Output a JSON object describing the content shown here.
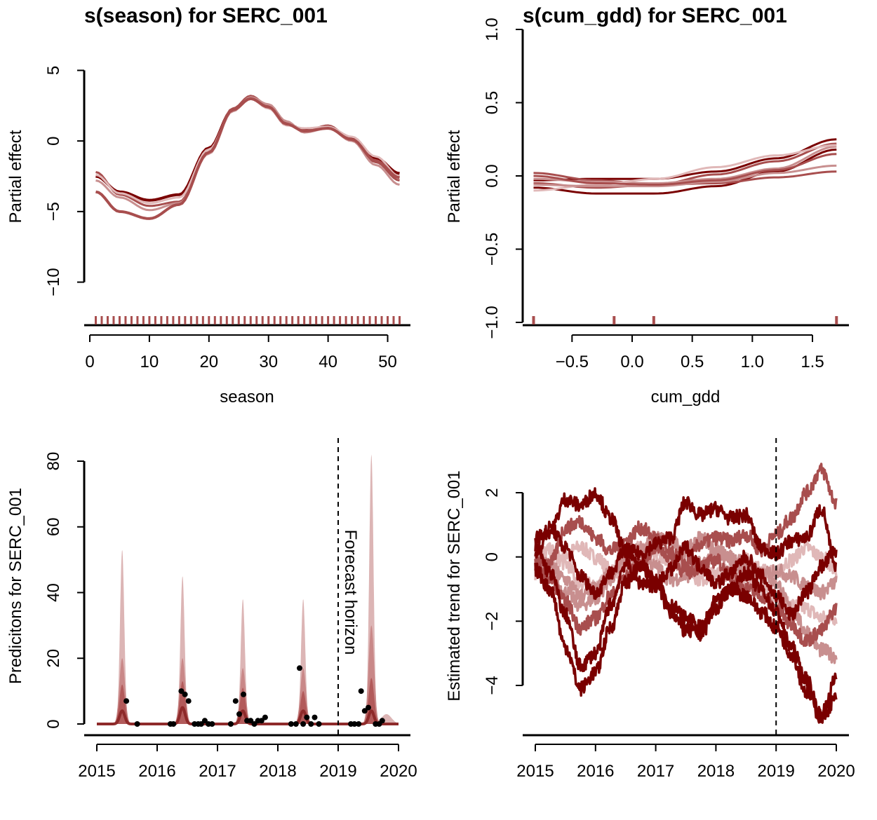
{
  "colors": {
    "dark": "#7a0000",
    "mid": "#a84e4e",
    "light": "#c88f8f",
    "pale": "#e0b8b8",
    "band_outer": "#dcb5b5",
    "band_mid": "#c98888",
    "band_inner": "#b25a5a",
    "points": "#000000"
  },
  "chart_data": [
    {
      "type": "line",
      "title": "s(season) for SERC_001",
      "xlabel": "season",
      "ylabel": "Partial effect",
      "xlim": [
        0,
        53
      ],
      "ylim": [
        -13,
        8
      ],
      "xticks": [
        "0",
        "10",
        "20",
        "30",
        "40",
        "50"
      ],
      "yticks": [
        "5",
        "0",
        "−5",
        "−10"
      ],
      "rug": "weekly, season 1 to 52",
      "series_y_at_x": {
        "x": [
          1,
          5,
          10,
          15,
          20,
          24,
          27,
          30,
          33,
          36,
          40,
          44,
          48,
          52
        ],
        "draws": [
          [
            -2.5,
            -3.6,
            -4.2,
            -3.8,
            -0.5,
            2.2,
            3.0,
            2.4,
            1.2,
            0.8,
            1.0,
            0.2,
            -1.2,
            -2.3
          ],
          [
            -2.2,
            -3.8,
            -4.6,
            -4.3,
            -0.8,
            2.3,
            3.2,
            2.5,
            1.3,
            0.7,
            1.1,
            0.1,
            -1.5,
            -2.8
          ],
          [
            -2.8,
            -4.0,
            -4.9,
            -4.4,
            -0.9,
            2.1,
            3.1,
            2.6,
            1.4,
            0.6,
            0.9,
            0.0,
            -1.7,
            -3.1
          ],
          [
            -2.4,
            -3.7,
            -4.4,
            -4.0,
            -0.6,
            2.2,
            3.0,
            2.3,
            1.1,
            0.9,
            1.0,
            0.3,
            -1.1,
            -2.5
          ],
          [
            -3.6,
            -5.0,
            -5.5,
            -4.5,
            -0.8,
            2.2,
            3.0,
            2.4,
            1.2,
            0.7,
            0.9,
            0.1,
            -1.4,
            -2.6
          ]
        ]
      }
    },
    {
      "type": "line",
      "title": "s(cum_gdd) for SERC_001",
      "xlabel": "cum_gdd",
      "ylabel": "Partial effect",
      "xlim": [
        -0.95,
        1.78
      ],
      "ylim": [
        -1.0,
        1.0
      ],
      "xticks": [
        "−0.5",
        "0.0",
        "0.5",
        "1.0",
        "1.5"
      ],
      "yticks": [
        "−1.0",
        "−0.5",
        "0.0",
        "0.5",
        "1.0"
      ],
      "rug": [
        -0.82,
        -0.15,
        0.18,
        1.7
      ],
      "series_y_at_x": {
        "x": [
          -0.82,
          -0.3,
          0.2,
          0.7,
          1.2,
          1.7
        ],
        "draws": [
          [
            -0.03,
            -0.02,
            -0.02,
            0.03,
            0.12,
            0.25
          ],
          [
            -0.08,
            -0.12,
            -0.12,
            -0.07,
            0.03,
            0.18
          ],
          [
            -0.05,
            -0.08,
            -0.06,
            0.01,
            0.1,
            0.22
          ],
          [
            0.02,
            -0.03,
            -0.06,
            -0.05,
            -0.01,
            0.03
          ],
          [
            -0.02,
            -0.04,
            -0.05,
            -0.02,
            0.05,
            0.2
          ],
          [
            -0.1,
            -0.06,
            -0.02,
            0.06,
            0.14,
            0.21
          ],
          [
            -0.06,
            -0.07,
            -0.07,
            -0.04,
            0.02,
            0.07
          ],
          [
            0.0,
            -0.05,
            -0.06,
            -0.03,
            0.04,
            0.15
          ]
        ]
      }
    },
    {
      "type": "area",
      "title": "",
      "xlabel": "",
      "ylabel": "Predicitons for SERC_001",
      "xlim": [
        2014.8,
        2020.2
      ],
      "ylim": [
        -2,
        88
      ],
      "xticks": [
        "2015",
        "2016",
        "2017",
        "2018",
        "2019",
        "2020"
      ],
      "yticks": [
        "0",
        "20",
        "40",
        "60",
        "80"
      ],
      "vline_x": 2019,
      "vline_label": "Forecast horizon",
      "peaks": [
        {
          "center": 2015.42,
          "upper": 53,
          "q90": 20,
          "q75": 12,
          "median": 4
        },
        {
          "center": 2016.42,
          "upper": 45,
          "q90": 20,
          "q75": 13,
          "median": 5
        },
        {
          "center": 2017.42,
          "upper": 38,
          "q90": 17,
          "q75": 11,
          "median": 4
        },
        {
          "center": 2018.42,
          "upper": 38,
          "q90": 17,
          "q75": 10,
          "median": 4
        },
        {
          "center": 2019.55,
          "upper": 82,
          "q90": 30,
          "q75": 14,
          "median": 4
        }
      ],
      "observations": [
        {
          "x": 2015.49,
          "y": 7
        },
        {
          "x": 2015.67,
          "y": 0
        },
        {
          "x": 2016.22,
          "y": 0
        },
        {
          "x": 2016.27,
          "y": 0
        },
        {
          "x": 2016.4,
          "y": 10
        },
        {
          "x": 2016.46,
          "y": 9
        },
        {
          "x": 2016.52,
          "y": 7
        },
        {
          "x": 2016.62,
          "y": 0
        },
        {
          "x": 2016.68,
          "y": 0
        },
        {
          "x": 2016.73,
          "y": 0
        },
        {
          "x": 2016.79,
          "y": 1
        },
        {
          "x": 2016.85,
          "y": 0
        },
        {
          "x": 2016.91,
          "y": 0
        },
        {
          "x": 2017.22,
          "y": 0
        },
        {
          "x": 2017.3,
          "y": 7
        },
        {
          "x": 2017.36,
          "y": 3
        },
        {
          "x": 2017.43,
          "y": 9
        },
        {
          "x": 2017.49,
          "y": 1
        },
        {
          "x": 2017.55,
          "y": 1
        },
        {
          "x": 2017.61,
          "y": 0
        },
        {
          "x": 2017.67,
          "y": 1
        },
        {
          "x": 2017.73,
          "y": 1
        },
        {
          "x": 2017.79,
          "y": 2
        },
        {
          "x": 2018.22,
          "y": 0
        },
        {
          "x": 2018.3,
          "y": 0
        },
        {
          "x": 2018.36,
          "y": 17
        },
        {
          "x": 2018.42,
          "y": 0
        },
        {
          "x": 2018.48,
          "y": 2
        },
        {
          "x": 2018.55,
          "y": 0
        },
        {
          "x": 2018.61,
          "y": 2
        },
        {
          "x": 2018.68,
          "y": 0
        },
        {
          "x": 2019.21,
          "y": 0
        },
        {
          "x": 2019.27,
          "y": 0
        },
        {
          "x": 2019.34,
          "y": 0
        },
        {
          "x": 2019.38,
          "y": 10
        },
        {
          "x": 2019.44,
          "y": 4
        },
        {
          "x": 2019.5,
          "y": 5
        },
        {
          "x": 2019.62,
          "y": 0
        },
        {
          "x": 2019.68,
          "y": 0
        },
        {
          "x": 2019.73,
          "y": 1
        }
      ]
    },
    {
      "type": "line",
      "title": "",
      "xlabel": "",
      "ylabel": "Estimated trend for SERC_001",
      "xlim": [
        2014.8,
        2020.2
      ],
      "ylim": [
        -5.5,
        3.7
      ],
      "xticks": [
        "2015",
        "2016",
        "2017",
        "2018",
        "2019",
        "2020"
      ],
      "yticks": [
        "2",
        "0",
        "−2",
        "−4"
      ],
      "vline_x": 2019,
      "series": [
        {
          "shade": "dark",
          "x": [
            2015,
            2015.25,
            2015.5,
            2015.75,
            2016,
            2016.25,
            2016.5,
            2016.75,
            2017,
            2017.25,
            2017.5,
            2017.75,
            2018,
            2018.25,
            2018.5,
            2018.75,
            2019,
            2019.25,
            2019.5,
            2019.75,
            2020
          ],
          "y": [
            0.6,
            0.8,
            1.8,
            1.6,
            2.0,
            1.2,
            0.2,
            0.1,
            0.4,
            0.6,
            1.7,
            1.3,
            1.5,
            1.2,
            1.3,
            0.3,
            0.1,
            0.5,
            0.6,
            1.5,
            -0.4
          ]
        },
        {
          "shade": "dark",
          "x": [
            2015,
            2015.25,
            2015.5,
            2015.75,
            2016,
            2016.25,
            2016.5,
            2016.75,
            2017,
            2017.25,
            2017.5,
            2017.75,
            2018,
            2018.25,
            2018.5,
            2018.75,
            2019,
            2019.25,
            2019.5,
            2019.75,
            2020
          ],
          "y": [
            -0.4,
            -1.0,
            -2.8,
            -4.1,
            -3.6,
            -2.2,
            -0.8,
            -0.3,
            -0.6,
            -1.5,
            -1.9,
            -2.2,
            -1.4,
            -1.0,
            -1.2,
            -1.7,
            -2.2,
            -3.0,
            -4.2,
            -5.0,
            -4.4
          ]
        },
        {
          "shade": "dark",
          "x": [
            2015,
            2015.25,
            2015.5,
            2015.75,
            2016,
            2016.25,
            2016.5,
            2016.75,
            2017,
            2017.25,
            2017.5,
            2017.75,
            2018,
            2018.25,
            2018.5,
            2018.75,
            2019,
            2019.25,
            2019.5,
            2019.75,
            2020
          ],
          "y": [
            0.3,
            -0.5,
            -1.8,
            -3.4,
            -3.0,
            -1.5,
            -0.2,
            -0.8,
            -0.9,
            -1.7,
            -2.3,
            -2.4,
            -1.6,
            -1.0,
            -0.5,
            -1.0,
            -1.7,
            -2.8,
            -3.8,
            -4.9,
            -3.8
          ]
        },
        {
          "shade": "dark",
          "x": [
            2015,
            2015.25,
            2015.5,
            2015.75,
            2016,
            2016.25,
            2016.5,
            2016.75,
            2017,
            2017.25,
            2017.5,
            2017.75,
            2018,
            2018.25,
            2018.5,
            2018.75,
            2019,
            2019.25,
            2019.5,
            2019.75,
            2020
          ],
          "y": [
            0.1,
            0.9,
            0.3,
            -0.6,
            -1.1,
            -0.5,
            0.2,
            -0.3,
            -0.9,
            -0.4,
            0.3,
            -0.3,
            -0.8,
            -0.5,
            0.0,
            -0.6,
            -1.2,
            -1.8,
            -1.1,
            -0.3,
            0.2
          ]
        },
        {
          "shade": "mid",
          "x": [
            2015,
            2015.25,
            2015.5,
            2015.75,
            2016,
            2016.25,
            2016.5,
            2016.75,
            2017,
            2017.25,
            2017.5,
            2017.75,
            2018,
            2018.25,
            2018.5,
            2018.75,
            2019,
            2019.25,
            2019.5,
            2019.75,
            2020
          ],
          "y": [
            -0.1,
            -0.2,
            0.9,
            1.1,
            0.6,
            0.2,
            0.5,
            0.9,
            0.6,
            0.1,
            -0.2,
            0.4,
            0.6,
            0.5,
            0.7,
            0.2,
            0.7,
            1.2,
            2.0,
            2.7,
            1.7
          ]
        },
        {
          "shade": "mid",
          "x": [
            2015,
            2015.25,
            2015.5,
            2015.75,
            2016,
            2016.25,
            2016.5,
            2016.75,
            2017,
            2017.25,
            2017.5,
            2017.75,
            2018,
            2018.25,
            2018.5,
            2018.75,
            2019,
            2019.25,
            2019.5,
            2019.75,
            2020
          ],
          "y": [
            -0.3,
            -0.7,
            -1.4,
            -2.2,
            -1.9,
            -1.2,
            -0.6,
            -0.2,
            0.3,
            0.0,
            -0.5,
            -0.3,
            -0.1,
            -0.6,
            -1.0,
            -1.2,
            -1.6,
            -2.1,
            -2.6,
            -2.3,
            -1.6
          ]
        },
        {
          "shade": "light",
          "x": [
            2015,
            2015.25,
            2015.5,
            2015.75,
            2016,
            2016.25,
            2016.5,
            2016.75,
            2017,
            2017.25,
            2017.5,
            2017.75,
            2018,
            2018.25,
            2018.5,
            2018.75,
            2019,
            2019.25,
            2019.5,
            2019.75,
            2020
          ],
          "y": [
            -0.2,
            -0.6,
            -1.1,
            -1.5,
            -1.3,
            -0.7,
            0.0,
            0.3,
            0.6,
            0.5,
            0.2,
            0.6,
            0.3,
            -0.1,
            -0.5,
            -0.4,
            -0.8,
            -1.6,
            -2.3,
            -2.9,
            -3.1
          ]
        },
        {
          "shade": "light",
          "x": [
            2015,
            2015.25,
            2015.5,
            2015.75,
            2016,
            2016.25,
            2016.5,
            2016.75,
            2017,
            2017.25,
            2017.5,
            2017.75,
            2018,
            2018.25,
            2018.5,
            2018.75,
            2019,
            2019.25,
            2019.5,
            2019.75,
            2020
          ],
          "y": [
            0.2,
            -0.3,
            -0.7,
            -1.2,
            -1.0,
            -0.5,
            -0.1,
            0.2,
            -0.3,
            -0.7,
            -0.6,
            -0.2,
            0.1,
            0.0,
            -0.2,
            -0.6,
            -0.4,
            -0.6,
            -0.9,
            -1.1,
            -0.8
          ]
        },
        {
          "shade": "pale",
          "x": [
            2015,
            2015.25,
            2015.5,
            2015.75,
            2016,
            2016.25,
            2016.5,
            2016.75,
            2017,
            2017.25,
            2017.5,
            2017.75,
            2018,
            2018.25,
            2018.5,
            2018.75,
            2019,
            2019.25,
            2019.5,
            2019.75,
            2020
          ],
          "y": [
            -0.5,
            -0.3,
            0.1,
            0.3,
            0.0,
            -0.4,
            -0.1,
            0.3,
            0.1,
            -0.2,
            0.0,
            -0.4,
            -0.6,
            -0.5,
            -0.7,
            -0.9,
            -1.3,
            -1.5,
            -1.6,
            -1.9,
            -1.9
          ]
        },
        {
          "shade": "pale",
          "x": [
            2015,
            2015.25,
            2015.5,
            2015.75,
            2016,
            2016.25,
            2016.5,
            2016.75,
            2017,
            2017.25,
            2017.5,
            2017.75,
            2018,
            2018.25,
            2018.5,
            2018.75,
            2019,
            2019.25,
            2019.5,
            2019.75,
            2020
          ],
          "y": [
            0.0,
            0.2,
            -0.2,
            -0.8,
            -0.9,
            -0.6,
            -0.3,
            0.0,
            0.2,
            -0.1,
            -0.4,
            -0.7,
            -0.5,
            -0.3,
            -0.1,
            -0.4,
            -0.5,
            -0.1,
            0.3,
            0.0,
            -0.4
          ]
        }
      ]
    }
  ]
}
